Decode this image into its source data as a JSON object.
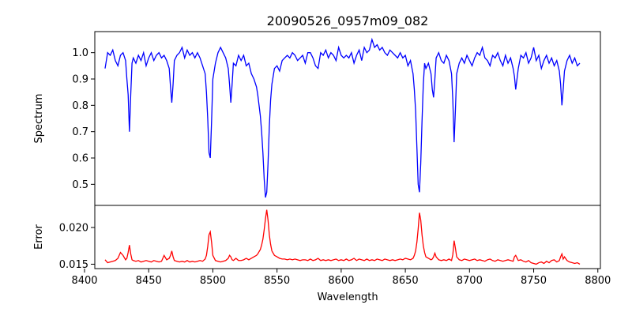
{
  "figure": {
    "title": "20090526_0957m09_082"
  },
  "chart_data": [
    {
      "type": "line",
      "panel": "top",
      "title": "20090526_0957m09_082",
      "xlabel": "",
      "ylabel": "Spectrum",
      "xlim": [
        8408,
        8802
      ],
      "ylim": [
        0.42,
        1.08
      ],
      "yticks": [
        0.5,
        0.6,
        0.7,
        0.8,
        0.9,
        1.0
      ],
      "ytick_labels": [
        "0.5",
        "0.6",
        "0.7",
        "0.8",
        "0.9",
        "1.0"
      ],
      "xticks": [],
      "grid": false,
      "series": [
        {
          "color": "#0000ff",
          "x": [
            8416,
            8418,
            8420,
            8422,
            8424,
            8426,
            8428,
            8430,
            8432,
            8433,
            8434,
            8435,
            8436,
            8437,
            8438,
            8440,
            8442,
            8444,
            8446,
            8448,
            8450,
            8452,
            8454,
            8456,
            8458,
            8460,
            8462,
            8464,
            8466,
            8467,
            8468,
            8469,
            8470,
            8472,
            8474,
            8476,
            8478,
            8480,
            8482,
            8484,
            8486,
            8488,
            8490,
            8492,
            8494,
            8495,
            8496,
            8497,
            8498,
            8499,
            8500,
            8502,
            8504,
            8506,
            8508,
            8510,
            8512,
            8513,
            8514,
            8515,
            8516,
            8518,
            8520,
            8522,
            8524,
            8526,
            8528,
            8530,
            8532,
            8534,
            8535,
            8536,
            8537,
            8538,
            8539,
            8540,
            8541,
            8542,
            8543,
            8544,
            8545,
            8546,
            8548,
            8550,
            8552,
            8554,
            8556,
            8558,
            8560,
            8562,
            8564,
            8566,
            8568,
            8570,
            8572,
            8574,
            8576,
            8578,
            8580,
            8582,
            8584,
            8586,
            8588,
            8590,
            8592,
            8594,
            8596,
            8598,
            8600,
            8602,
            8604,
            8606,
            8608,
            8610,
            8612,
            8614,
            8616,
            8618,
            8620,
            8622,
            8624,
            8626,
            8628,
            8630,
            8632,
            8634,
            8636,
            8638,
            8640,
            8642,
            8644,
            8646,
            8648,
            8650,
            8652,
            8654,
            8656,
            8657,
            8658,
            8659,
            8660,
            8661,
            8662,
            8663,
            8664,
            8665,
            8666,
            8668,
            8670,
            8671,
            8672,
            8673,
            8674,
            8676,
            8678,
            8680,
            8682,
            8684,
            8686,
            8687,
            8688,
            8689,
            8690,
            8692,
            8694,
            8696,
            8698,
            8700,
            8702,
            8704,
            8706,
            8708,
            8710,
            8712,
            8714,
            8716,
            8718,
            8720,
            8722,
            8724,
            8726,
            8728,
            8730,
            8732,
            8734,
            8735,
            8736,
            8738,
            8740,
            8742,
            8744,
            8746,
            8748,
            8750,
            8752,
            8754,
            8756,
            8758,
            8760,
            8762,
            8764,
            8766,
            8768,
            8770,
            8771,
            8772,
            8773,
            8774,
            8776,
            8778,
            8780,
            8782,
            8784,
            8786
          ],
          "y": [
            0.94,
            1.0,
            0.99,
            1.01,
            0.97,
            0.95,
            0.99,
            1.0,
            0.97,
            0.9,
            0.84,
            0.7,
            0.84,
            0.96,
            0.98,
            0.96,
            0.99,
            0.97,
            1.0,
            0.95,
            0.98,
            1.0,
            0.97,
            0.99,
            1.0,
            0.98,
            0.99,
            0.97,
            0.94,
            0.87,
            0.81,
            0.88,
            0.97,
            0.99,
            1.0,
            1.02,
            0.98,
            1.01,
            0.99,
            1.0,
            0.98,
            1.0,
            0.98,
            0.95,
            0.92,
            0.85,
            0.75,
            0.62,
            0.6,
            0.74,
            0.9,
            0.96,
            1.0,
            1.02,
            1.0,
            0.98,
            0.94,
            0.88,
            0.81,
            0.88,
            0.96,
            0.95,
            0.99,
            0.97,
            0.99,
            0.95,
            0.96,
            0.92,
            0.9,
            0.87,
            0.84,
            0.8,
            0.76,
            0.7,
            0.62,
            0.52,
            0.45,
            0.47,
            0.58,
            0.72,
            0.82,
            0.88,
            0.94,
            0.95,
            0.93,
            0.97,
            0.98,
            0.99,
            0.98,
            1.0,
            0.99,
            0.97,
            0.98,
            0.99,
            0.96,
            1.0,
            1.0,
            0.98,
            0.95,
            0.94,
            1.0,
            0.99,
            1.01,
            0.98,
            1.0,
            0.99,
            0.97,
            1.02,
            0.99,
            0.98,
            0.99,
            0.98,
            1.0,
            0.96,
            0.99,
            1.01,
            0.97,
            1.02,
            1.0,
            1.01,
            1.05,
            1.02,
            1.03,
            1.01,
            1.02,
            1.0,
            0.99,
            1.01,
            1.0,
            0.99,
            0.98,
            1.0,
            0.98,
            0.99,
            0.95,
            0.97,
            0.92,
            0.86,
            0.78,
            0.64,
            0.5,
            0.47,
            0.58,
            0.74,
            0.88,
            0.96,
            0.94,
            0.96,
            0.92,
            0.86,
            0.83,
            0.9,
            0.98,
            1.0,
            0.97,
            0.96,
            0.99,
            0.97,
            0.92,
            0.82,
            0.66,
            0.78,
            0.92,
            0.96,
            0.98,
            0.96,
            0.99,
            0.97,
            0.95,
            0.98,
            1.0,
            0.99,
            1.02,
            0.98,
            0.97,
            0.95,
            0.99,
            0.98,
            1.0,
            0.97,
            0.95,
            0.99,
            0.96,
            0.98,
            0.94,
            0.91,
            0.86,
            0.94,
            0.99,
            0.98,
            1.0,
            0.96,
            0.98,
            1.02,
            0.97,
            0.99,
            0.94,
            0.97,
            0.99,
            0.96,
            0.98,
            0.95,
            0.97,
            0.93,
            0.88,
            0.8,
            0.86,
            0.93,
            0.97,
            0.99,
            0.96,
            0.98,
            0.95,
            0.96
          ]
        }
      ]
    },
    {
      "type": "line",
      "panel": "bottom",
      "title": "",
      "xlabel": "Wavelength",
      "ylabel": "Error",
      "xlim": [
        8408,
        8802
      ],
      "ylim": [
        0.0144,
        0.023
      ],
      "yticks": [
        0.015,
        0.02
      ],
      "ytick_labels": [
        "0.015",
        "0.020"
      ],
      "xticks": [
        8400,
        8450,
        8500,
        8550,
        8600,
        8650,
        8700,
        8750,
        8800
      ],
      "xtick_labels": [
        "8400",
        "8450",
        "8500",
        "8550",
        "8600",
        "8650",
        "8700",
        "8750",
        "8800"
      ],
      "grid": false,
      "series": [
        {
          "color": "#ff0000",
          "x": [
            8416,
            8418,
            8420,
            8422,
            8424,
            8426,
            8428,
            8430,
            8432,
            8433,
            8434,
            8435,
            8436,
            8437,
            8438,
            8440,
            8442,
            8444,
            8446,
            8448,
            8450,
            8452,
            8454,
            8456,
            8458,
            8460,
            8462,
            8464,
            8466,
            8467,
            8468,
            8469,
            8470,
            8472,
            8474,
            8476,
            8478,
            8480,
            8482,
            8484,
            8486,
            8488,
            8490,
            8492,
            8494,
            8495,
            8496,
            8497,
            8498,
            8499,
            8500,
            8502,
            8504,
            8506,
            8508,
            8510,
            8512,
            8513,
            8514,
            8515,
            8516,
            8518,
            8520,
            8522,
            8524,
            8526,
            8528,
            8530,
            8532,
            8534,
            8535,
            8536,
            8537,
            8538,
            8539,
            8540,
            8541,
            8542,
            8543,
            8544,
            8545,
            8546,
            8548,
            8550,
            8552,
            8554,
            8556,
            8558,
            8560,
            8562,
            8564,
            8566,
            8568,
            8570,
            8572,
            8574,
            8576,
            8578,
            8580,
            8582,
            8584,
            8586,
            8588,
            8590,
            8592,
            8594,
            8596,
            8598,
            8600,
            8602,
            8604,
            8606,
            8608,
            8610,
            8612,
            8614,
            8616,
            8618,
            8620,
            8622,
            8624,
            8626,
            8628,
            8630,
            8632,
            8634,
            8636,
            8638,
            8640,
            8642,
            8644,
            8646,
            8648,
            8650,
            8652,
            8654,
            8656,
            8657,
            8658,
            8659,
            8660,
            8661,
            8662,
            8663,
            8664,
            8665,
            8666,
            8668,
            8670,
            8671,
            8672,
            8673,
            8674,
            8676,
            8678,
            8680,
            8682,
            8684,
            8686,
            8687,
            8688,
            8689,
            8690,
            8692,
            8694,
            8696,
            8698,
            8700,
            8702,
            8704,
            8706,
            8708,
            8710,
            8712,
            8714,
            8716,
            8718,
            8720,
            8722,
            8724,
            8726,
            8728,
            8730,
            8732,
            8734,
            8735,
            8736,
            8738,
            8740,
            8742,
            8744,
            8746,
            8748,
            8750,
            8752,
            8754,
            8756,
            8758,
            8760,
            8762,
            8764,
            8766,
            8768,
            8770,
            8771,
            8772,
            8773,
            8774,
            8776,
            8778,
            8780,
            8782,
            8784,
            8786
          ],
          "y": [
            0.0156,
            0.0152,
            0.0153,
            0.0154,
            0.0155,
            0.0158,
            0.0166,
            0.0162,
            0.0156,
            0.0158,
            0.0166,
            0.0176,
            0.0164,
            0.0156,
            0.0155,
            0.0154,
            0.0155,
            0.0153,
            0.0154,
            0.0155,
            0.0154,
            0.0153,
            0.0155,
            0.0154,
            0.0153,
            0.0154,
            0.0162,
            0.0156,
            0.0158,
            0.0162,
            0.0168,
            0.016,
            0.0155,
            0.0154,
            0.0153,
            0.0154,
            0.0153,
            0.0155,
            0.0153,
            0.0154,
            0.0153,
            0.0154,
            0.0155,
            0.0154,
            0.0157,
            0.0162,
            0.0174,
            0.019,
            0.0194,
            0.018,
            0.0162,
            0.0155,
            0.0154,
            0.0153,
            0.0154,
            0.0155,
            0.0158,
            0.0162,
            0.016,
            0.0156,
            0.0155,
            0.0158,
            0.0155,
            0.0155,
            0.0156,
            0.0158,
            0.0156,
            0.0158,
            0.016,
            0.0162,
            0.0164,
            0.0167,
            0.017,
            0.0176,
            0.0184,
            0.0197,
            0.0212,
            0.0224,
            0.021,
            0.019,
            0.0177,
            0.0168,
            0.0162,
            0.016,
            0.0158,
            0.0157,
            0.0157,
            0.0156,
            0.0157,
            0.0156,
            0.0157,
            0.0156,
            0.0155,
            0.0156,
            0.0156,
            0.0155,
            0.0157,
            0.0155,
            0.0156,
            0.0158,
            0.0155,
            0.0156,
            0.0155,
            0.0156,
            0.0155,
            0.0156,
            0.0157,
            0.0155,
            0.0156,
            0.0155,
            0.0157,
            0.0155,
            0.0156,
            0.0158,
            0.0155,
            0.0157,
            0.0156,
            0.0155,
            0.0157,
            0.0155,
            0.0156,
            0.0155,
            0.0157,
            0.0156,
            0.0155,
            0.0157,
            0.0156,
            0.0155,
            0.0156,
            0.0155,
            0.0156,
            0.0157,
            0.0156,
            0.0158,
            0.0157,
            0.0156,
            0.0158,
            0.0162,
            0.0168,
            0.018,
            0.0198,
            0.022,
            0.021,
            0.019,
            0.0175,
            0.0166,
            0.016,
            0.0158,
            0.0156,
            0.0157,
            0.016,
            0.0165,
            0.016,
            0.0156,
            0.0155,
            0.0156,
            0.0155,
            0.0157,
            0.0155,
            0.0163,
            0.0182,
            0.0172,
            0.016,
            0.0156,
            0.0155,
            0.0157,
            0.0156,
            0.0155,
            0.0156,
            0.0157,
            0.0155,
            0.0156,
            0.0155,
            0.0154,
            0.0156,
            0.0157,
            0.0155,
            0.0154,
            0.0156,
            0.0155,
            0.0154,
            0.0155,
            0.0156,
            0.0155,
            0.0154,
            0.016,
            0.0162,
            0.0155,
            0.0156,
            0.0154,
            0.0153,
            0.0155,
            0.0152,
            0.0151,
            0.015,
            0.0152,
            0.0153,
            0.0151,
            0.0154,
            0.0152,
            0.0155,
            0.0156,
            0.0153,
            0.0155,
            0.016,
            0.0164,
            0.0157,
            0.016,
            0.0155,
            0.0153,
            0.0152,
            0.0151,
            0.0152,
            0.015
          ]
        }
      ]
    }
  ]
}
